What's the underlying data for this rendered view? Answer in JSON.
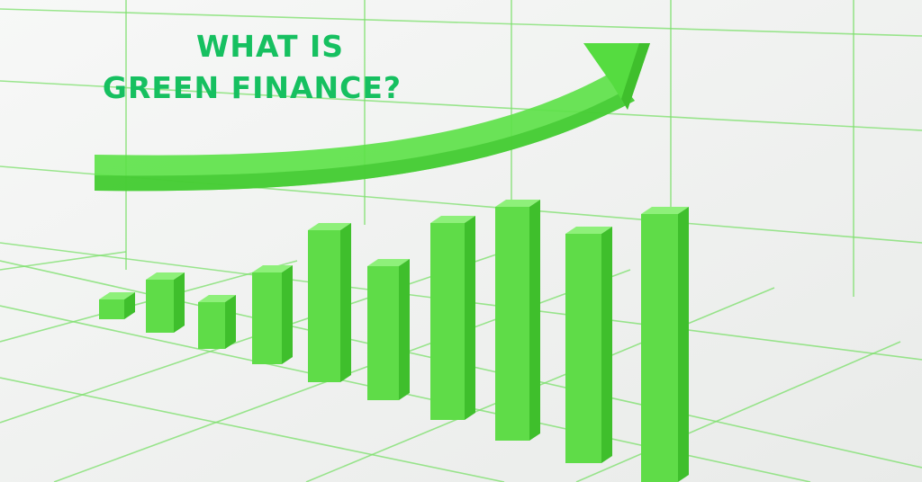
{
  "headline": {
    "line1": "WHAT IS",
    "line2": "GREEN FINANCE?"
  },
  "colors": {
    "headline": "#16c060",
    "bar_front": "#5fdc48",
    "bar_side": "#3fbf2c",
    "bar_top": "#8ef07a",
    "arrow": "#5ee24a",
    "grid": "#7be06a",
    "background": "#f3f4f3"
  },
  "illustration": {
    "bar_count": 10,
    "arrow_direction": "up-right",
    "trend": "rising"
  }
}
